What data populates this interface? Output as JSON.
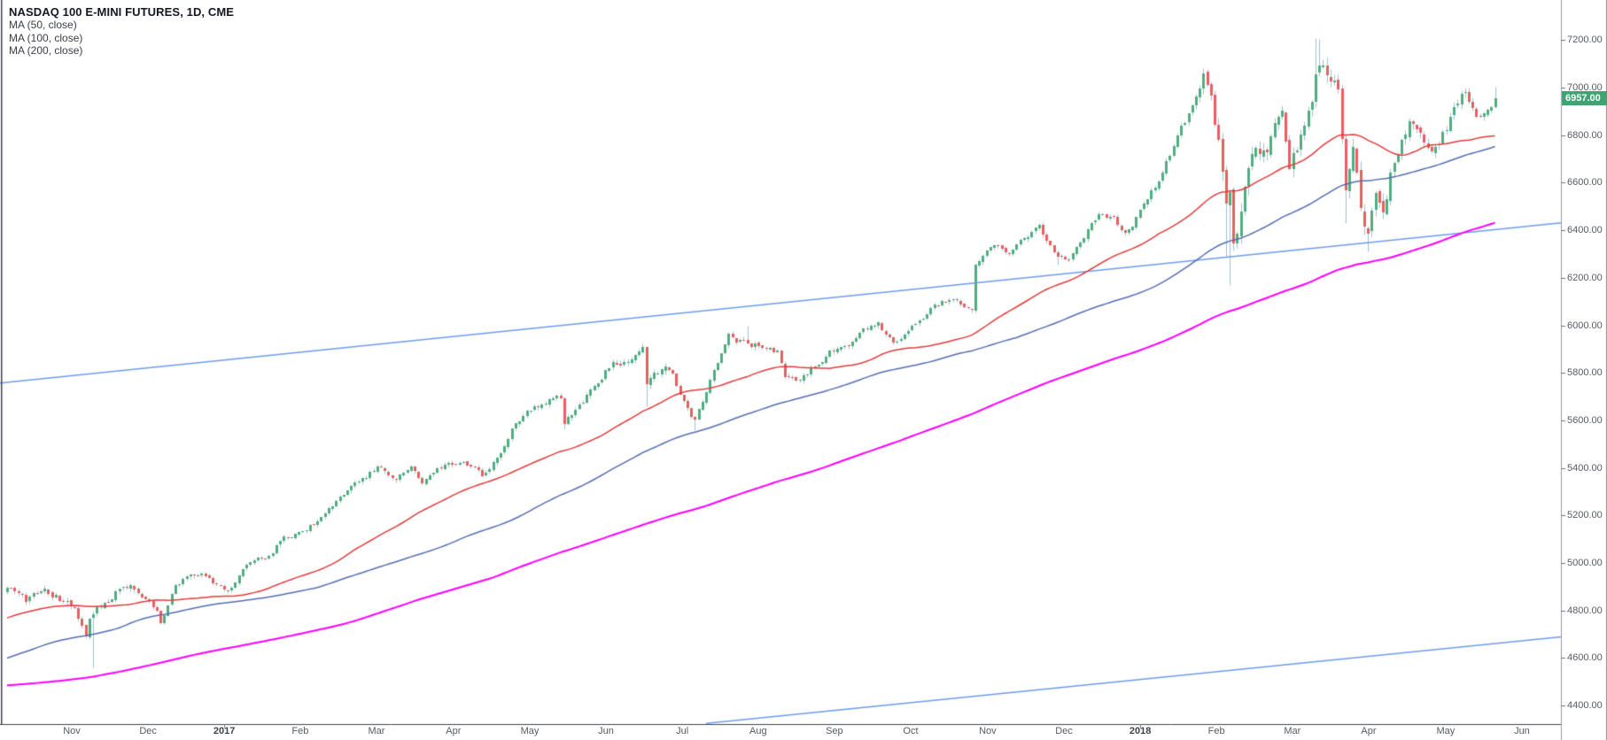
{
  "header": {
    "title": "NASDAQ 100 E-MINI FUTURES, 1D, CME"
  },
  "chart_data": {
    "type": "candlestick",
    "title": "NASDAQ 100 E-MINI FUTURES, 1D, CME",
    "symbol": "NASDAQ 100 E-MINI FUTURES",
    "interval": "1D",
    "exchange": "CME",
    "last_price": 6957.0,
    "last_price_label": "6957.00",
    "grid": "off",
    "legend_position": "top-left",
    "y_axis": {
      "side": "right",
      "ticks": [
        7200,
        7000,
        6800,
        6600,
        6400,
        6200,
        6000,
        5800,
        5600,
        5400,
        5200,
        5000,
        4800,
        4600,
        4400
      ],
      "visible_range": [
        4320,
        7370
      ]
    },
    "x_axis": {
      "months": [
        {
          "label": "Nov",
          "day": 17.3,
          "bold": false
        },
        {
          "label": "Dec",
          "day": 37.7,
          "bold": false
        },
        {
          "label": "2017",
          "day": 58.1,
          "bold": true
        },
        {
          "label": "Feb",
          "day": 78.4,
          "bold": false
        },
        {
          "label": "Mar",
          "day": 98.8,
          "bold": false
        },
        {
          "label": "Apr",
          "day": 119.4,
          "bold": false
        },
        {
          "label": "May",
          "day": 139.8,
          "bold": false
        },
        {
          "label": "Jun",
          "day": 160.2,
          "bold": false
        },
        {
          "label": "Jul",
          "day": 180.6,
          "bold": false
        },
        {
          "label": "Aug",
          "day": 200.9,
          "bold": false
        },
        {
          "label": "Sep",
          "day": 221.3,
          "bold": false
        },
        {
          "label": "Oct",
          "day": 241.7,
          "bold": false
        },
        {
          "label": "Nov",
          "day": 262.3,
          "bold": false
        },
        {
          "label": "Dec",
          "day": 282.7,
          "bold": false
        },
        {
          "label": "2018",
          "day": 303.1,
          "bold": true
        },
        {
          "label": "Feb",
          "day": 323.5,
          "bold": false
        },
        {
          "label": "Mar",
          "day": 343.8,
          "bold": false
        },
        {
          "label": "Apr",
          "day": 364.2,
          "bold": false
        },
        {
          "label": "May",
          "day": 384.8,
          "bold": false
        },
        {
          "label": "Jun",
          "day": 405.2,
          "bold": false
        }
      ]
    },
    "price_anchors": [
      [
        -210,
        4680
      ],
      [
        -187,
        4580
      ],
      [
        -180,
        4350
      ],
      [
        -175,
        4220
      ],
      [
        -170,
        4300
      ],
      [
        -163,
        4150
      ],
      [
        -159,
        4020
      ],
      [
        -152,
        4240
      ],
      [
        -140,
        4330
      ],
      [
        -130,
        4430
      ],
      [
        -120,
        4470
      ],
      [
        -112,
        4540
      ],
      [
        -105,
        4350
      ],
      [
        -98,
        4340
      ],
      [
        -92,
        4290
      ],
      [
        -85,
        4480
      ],
      [
        -77,
        4480
      ],
      [
        -71,
        4450
      ],
      [
        -68,
        4220
      ],
      [
        -66,
        4280
      ],
      [
        -60,
        4500
      ],
      [
        -52,
        4600
      ],
      [
        -44,
        4660
      ],
      [
        -35,
        4790
      ],
      [
        -25,
        4800
      ],
      [
        -18,
        4840
      ],
      [
        -15,
        4690
      ],
      [
        -10,
        4740
      ],
      [
        -7,
        4850
      ],
      [
        -2,
        4870
      ],
      [
        0,
        4900
      ],
      [
        5,
        4845
      ],
      [
        10,
        4880
      ],
      [
        14,
        4850
      ],
      [
        18,
        4805
      ],
      [
        21,
        4700
      ],
      [
        22,
        4780
      ],
      [
        23,
        4790
      ],
      [
        25,
        4815
      ],
      [
        29,
        4870
      ],
      [
        33,
        4890
      ],
      [
        37,
        4855
      ],
      [
        40,
        4805
      ],
      [
        41,
        4755
      ],
      [
        45,
        4900
      ],
      [
        48,
        4940
      ],
      [
        52,
        4945
      ],
      [
        56,
        4905
      ],
      [
        59,
        4880
      ],
      [
        64,
        4990
      ],
      [
        70,
        5030
      ],
      [
        74,
        5110
      ],
      [
        79,
        5125
      ],
      [
        85,
        5210
      ],
      [
        92,
        5320
      ],
      [
        99,
        5400
      ],
      [
        104,
        5360
      ],
      [
        108,
        5400
      ],
      [
        111,
        5325
      ],
      [
        115,
        5390
      ],
      [
        118,
        5415
      ],
      [
        122,
        5435
      ],
      [
        127,
        5370
      ],
      [
        132,
        5450
      ],
      [
        135,
        5570
      ],
      [
        140,
        5650
      ],
      [
        144,
        5680
      ],
      [
        148,
        5700
      ],
      [
        149,
        5590
      ],
      [
        151,
        5625
      ],
      [
        155,
        5710
      ],
      [
        160,
        5800
      ],
      [
        162,
        5835
      ],
      [
        164,
        5830
      ],
      [
        167,
        5865
      ],
      [
        170,
        5890
      ],
      [
        171,
        5745
      ],
      [
        173,
        5790
      ],
      [
        176,
        5840
      ],
      [
        178,
        5800
      ],
      [
        180,
        5720
      ],
      [
        182,
        5660
      ],
      [
        184,
        5600
      ],
      [
        186,
        5670
      ],
      [
        189,
        5800
      ],
      [
        193,
        5950
      ],
      [
        198,
        5920
      ],
      [
        202,
        5920
      ],
      [
        206,
        5890
      ],
      [
        208,
        5790
      ],
      [
        212,
        5780
      ],
      [
        216,
        5830
      ],
      [
        220,
        5890
      ],
      [
        225,
        5900
      ],
      [
        229,
        5980
      ],
      [
        233,
        6010
      ],
      [
        237,
        5920
      ],
      [
        242,
        5990
      ],
      [
        248,
        6080
      ],
      [
        253,
        6110
      ],
      [
        258,
        6070
      ],
      [
        259,
        6260
      ],
      [
        263,
        6330
      ],
      [
        268,
        6310
      ],
      [
        272,
        6360
      ],
      [
        276,
        6410
      ],
      [
        281,
        6290
      ],
      [
        284,
        6270
      ],
      [
        287,
        6340
      ],
      [
        292,
        6470
      ],
      [
        296,
        6450
      ],
      [
        299,
        6380
      ],
      [
        301,
        6410
      ],
      [
        304,
        6510
      ],
      [
        309,
        6640
      ],
      [
        313,
        6800
      ],
      [
        318,
        6950
      ],
      [
        320,
        7050
      ],
      [
        322,
        6930
      ],
      [
        324,
        6770
      ],
      [
        326,
        6500
      ],
      [
        327,
        6590
      ],
      [
        328,
        6330
      ],
      [
        331,
        6570
      ],
      [
        333,
        6750
      ],
      [
        337,
        6730
      ],
      [
        341,
        6890
      ],
      [
        343,
        6680
      ],
      [
        348,
        6880
      ],
      [
        351,
        7120
      ],
      [
        354,
        7050
      ],
      [
        356,
        7000
      ],
      [
        358,
        6590
      ],
      [
        360,
        6760
      ],
      [
        362,
        6490
      ],
      [
        364,
        6400
      ],
      [
        366,
        6520
      ],
      [
        368,
        6450
      ],
      [
        370,
        6620
      ],
      [
        372,
        6740
      ],
      [
        375,
        6860
      ],
      [
        377,
        6800
      ],
      [
        379,
        6750
      ],
      [
        381,
        6720
      ],
      [
        383,
        6770
      ],
      [
        385,
        6830
      ],
      [
        387,
        6900
      ],
      [
        389,
        6950
      ],
      [
        390,
        6960
      ],
      [
        392,
        6900
      ],
      [
        393,
        6870
      ],
      [
        395,
        6880
      ],
      [
        397,
        6920
      ],
      [
        398,
        6957
      ]
    ],
    "volatility_anchors": [
      [
        -210,
        0.55
      ],
      [
        -160,
        0.85
      ],
      [
        -120,
        0.5
      ],
      [
        -90,
        0.55
      ],
      [
        -68,
        1.0
      ],
      [
        -50,
        0.45
      ],
      [
        -20,
        0.5
      ],
      [
        0,
        0.42
      ],
      [
        23,
        0.6
      ],
      [
        45,
        0.38
      ],
      [
        80,
        0.3
      ],
      [
        112,
        0.38
      ],
      [
        150,
        0.4
      ],
      [
        171,
        0.55
      ],
      [
        185,
        0.35
      ],
      [
        210,
        0.4
      ],
      [
        240,
        0.3
      ],
      [
        270,
        0.32
      ],
      [
        300,
        0.3
      ],
      [
        318,
        0.4
      ],
      [
        325,
        1.2
      ],
      [
        335,
        0.9
      ],
      [
        350,
        0.8
      ],
      [
        360,
        1.1
      ],
      [
        375,
        0.7
      ],
      [
        390,
        0.5
      ],
      [
        398,
        0.4
      ]
    ],
    "wick_events": [
      {
        "day": 23,
        "low": 4560
      },
      {
        "day": 149,
        "low": 5563
      },
      {
        "day": 171,
        "low": 5660
      },
      {
        "day": 184,
        "low": 5560
      },
      {
        "day": 198,
        "high": 6000
      },
      {
        "day": 281,
        "low": 6255
      },
      {
        "day": 326,
        "low": 6290
      },
      {
        "day": 327,
        "low": 6170
      },
      {
        "day": 350,
        "high": 7210
      },
      {
        "day": 351,
        "high": 7205
      },
      {
        "day": 358,
        "low": 6430
      },
      {
        "day": 364,
        "low": 6310
      },
      {
        "day": 390,
        "high": 6990
      },
      {
        "day": 398,
        "high": 7002
      }
    ],
    "moving_averages": [
      {
        "label": "MA (50, close)",
        "period": 50,
        "color": "#e33b3b",
        "width": 1.5
      },
      {
        "label": "MA (100, close)",
        "period": 100,
        "color": "#556eb4",
        "width": 1.5
      },
      {
        "label": "MA (200, close)",
        "period": 200,
        "color": "#ff00ff",
        "width": 2
      }
    ],
    "trendlines": [
      {
        "from": [
          -2,
          5757
        ],
        "to": [
          416,
          6432
        ]
      },
      {
        "from": [
          187,
          4325
        ],
        "to": [
          416,
          4690
        ]
      }
    ],
    "colors": {
      "up": "#4fae80",
      "down": "#e66060",
      "wick": "#a5c0d0",
      "trendline": "#6e9bf0",
      "tag_bg": "#3fa372",
      "tag_text": "#ffffff",
      "axis_text": "#575b64",
      "axis_line": "#989ba1",
      "frame_line": "#42444a"
    }
  }
}
